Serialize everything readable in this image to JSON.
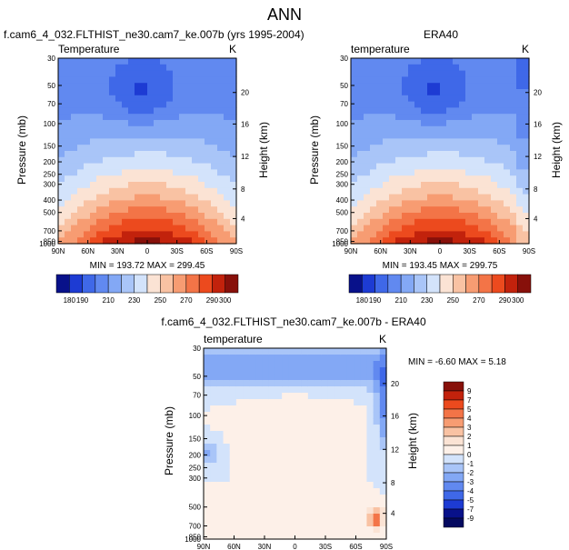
{
  "page": {
    "title": "ANN"
  },
  "chart_data": [
    {
      "type": "heatmap",
      "title": "f.cam6_4_032.FLTHIST_ne30.cam7_ke.007b (yrs 1995-2004)",
      "variable_label": "Temperature",
      "units": "K",
      "xlabel": "",
      "ylabel": "Pressure (mb)",
      "ylabel_right": "Height (km)",
      "x_ticks": [
        "90N",
        "60N",
        "30N",
        "0",
        "30S",
        "60S",
        "90S"
      ],
      "y_ticks": [
        "30",
        "50",
        "70",
        "100",
        "150",
        "200",
        "250",
        "300",
        "400",
        "500",
        "700",
        "850",
        "1000"
      ],
      "y_right_ticks": [
        "20",
        "16",
        "12",
        "8",
        "4"
      ],
      "stats_text": "MIN = 193.72   MAX = 299.45",
      "colorbar_levels": [
        "180",
        "190",
        "200",
        "210",
        "220",
        "230",
        "240",
        "250",
        "260",
        "270",
        "280",
        "290",
        "300"
      ],
      "colorbar_label_text": [
        "180",
        "190",
        "210",
        "230",
        "250",
        "270",
        "290",
        "300"
      ],
      "colorbar_colors": [
        "#08118a",
        "#1d3bd3",
        "#3f68e8",
        "#6189f0",
        "#83a8f5",
        "#a9c5f8",
        "#d3e3fb",
        "#fbe3d4",
        "#f9c2a3",
        "#f79c72",
        "#f37447",
        "#ec4a1e",
        "#c2220c",
        "#87100a"
      ],
      "min": 193.72,
      "max": 299.45
    },
    {
      "type": "heatmap",
      "title": "ERA40",
      "variable_label": "temperature",
      "units": "K",
      "xlabel": "",
      "ylabel": "Pressure (mb)",
      "ylabel_right": "Height (km)",
      "x_ticks": [
        "90N",
        "60N",
        "30N",
        "0",
        "30S",
        "60S",
        "90S"
      ],
      "y_ticks": [
        "30",
        "50",
        "70",
        "100",
        "150",
        "200",
        "250",
        "300",
        "400",
        "500",
        "700",
        "850",
        "1000"
      ],
      "y_right_ticks": [
        "20",
        "16",
        "12",
        "8",
        "4"
      ],
      "stats_text": "MIN = 193.45   MAX = 299.75",
      "colorbar_levels": [
        "180",
        "190",
        "200",
        "210",
        "220",
        "230",
        "240",
        "250",
        "260",
        "270",
        "280",
        "290",
        "300"
      ],
      "colorbar_label_text": [
        "180",
        "190",
        "210",
        "230",
        "250",
        "270",
        "290",
        "300"
      ],
      "colorbar_colors": [
        "#08118a",
        "#1d3bd3",
        "#3f68e8",
        "#6189f0",
        "#83a8f5",
        "#a9c5f8",
        "#d3e3fb",
        "#fbe3d4",
        "#f9c2a3",
        "#f79c72",
        "#f37447",
        "#ec4a1e",
        "#c2220c",
        "#87100a"
      ],
      "min": 193.45,
      "max": 299.75
    },
    {
      "type": "heatmap",
      "title": "f.cam6_4_032.FLTHIST_ne30.cam7_ke.007b - ERA40",
      "variable_label": "temperature",
      "units": "K",
      "xlabel": "",
      "ylabel": "Pressure (mb)",
      "ylabel_right": "Height (km)",
      "x_ticks": [
        "90N",
        "60N",
        "30N",
        "0",
        "30S",
        "60S",
        "90S"
      ],
      "y_ticks": [
        "30",
        "50",
        "70",
        "100",
        "150",
        "200",
        "250",
        "300",
        "500",
        "700",
        "850",
        "1000"
      ],
      "y_right_ticks": [
        "20",
        "16",
        "12",
        "8",
        "4"
      ],
      "stats_text": "MIN = -6.60   MAX =  5.18",
      "colorbar_labels": [
        "9",
        "7",
        "5",
        "4",
        "3",
        "2",
        "1",
        "0",
        "-1",
        "-2",
        "-3",
        "-4",
        "-5",
        "-7",
        "-9"
      ],
      "colorbar_colors": [
        "#87100a",
        "#c2220c",
        "#ec4a1e",
        "#f37447",
        "#f79c72",
        "#f9c2a3",
        "#fbe3d4",
        "#fdf0e8",
        "#d3e3fb",
        "#a9c5f8",
        "#83a8f5",
        "#6189f0",
        "#3f68e8",
        "#1d3bd3",
        "#08118a",
        "#050a60"
      ],
      "min": -6.6,
      "max": 5.18
    }
  ]
}
